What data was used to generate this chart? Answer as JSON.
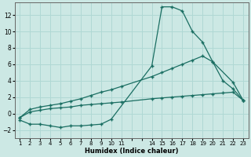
{
  "xlabel": "Humidex (Indice chaleur)",
  "bg_color": "#cce8e4",
  "grid_color": "#b0d8d4",
  "line_color": "#1a6e62",
  "ylim": [
    -3.0,
    13.5
  ],
  "yticks": [
    -2,
    0,
    2,
    4,
    6,
    8,
    10,
    12
  ],
  "xlim": [
    0.5,
    23.5
  ],
  "line1_x": [
    1,
    2,
    3,
    4,
    5,
    6,
    7,
    8,
    9,
    10,
    14,
    15,
    16,
    17,
    18,
    19,
    20,
    21,
    22,
    23
  ],
  "line1_y": [
    -0.8,
    -1.3,
    -1.3,
    -1.5,
    -1.7,
    -1.5,
    -1.5,
    -1.4,
    -1.3,
    -0.7,
    5.8,
    13.0,
    13.0,
    12.5,
    10.0,
    8.7,
    6.3,
    4.0,
    3.0,
    1.6
  ],
  "line2_x": [
    1,
    2,
    3,
    4,
    5,
    6,
    7,
    8,
    9,
    10,
    11,
    14,
    15,
    16,
    17,
    18,
    19,
    20,
    22,
    23
  ],
  "line2_y": [
    -0.5,
    0.5,
    0.8,
    1.0,
    1.2,
    1.5,
    1.8,
    2.2,
    2.6,
    2.9,
    3.3,
    4.5,
    5.0,
    5.5,
    6.0,
    6.5,
    7.0,
    6.3,
    3.8,
    1.6
  ],
  "line3_x": [
    1,
    2,
    3,
    4,
    5,
    6,
    7,
    8,
    9,
    10,
    11,
    14,
    15,
    16,
    17,
    18,
    19,
    20,
    21,
    22,
    23
  ],
  "line3_y": [
    -0.5,
    0.2,
    0.4,
    0.6,
    0.7,
    0.8,
    1.0,
    1.1,
    1.2,
    1.3,
    1.4,
    1.8,
    1.9,
    2.0,
    2.1,
    2.2,
    2.3,
    2.4,
    2.5,
    2.6,
    1.6
  ],
  "shown_xticks": [
    1,
    2,
    3,
    4,
    5,
    6,
    7,
    8,
    9,
    10,
    11,
    14,
    15,
    16,
    17,
    18,
    19,
    20,
    21,
    22,
    23
  ]
}
